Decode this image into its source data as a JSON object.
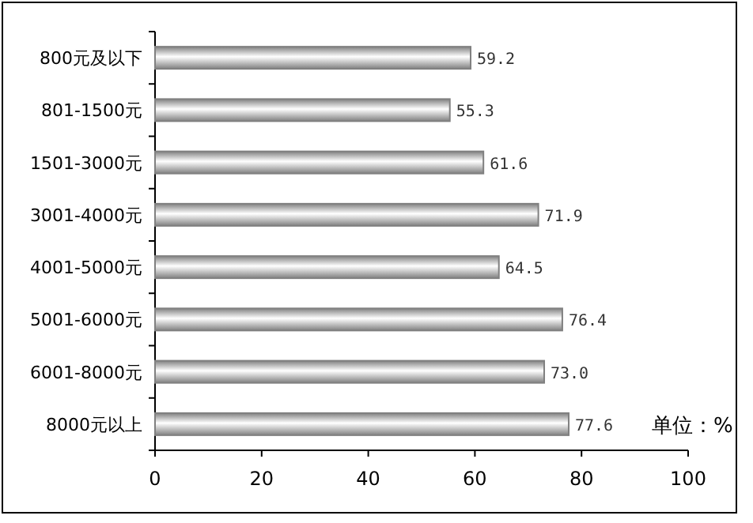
{
  "chart_data": {
    "type": "bar",
    "orientation": "horizontal",
    "categories": [
      "800元及以下",
      "801-1500元",
      "1501-3000元",
      "3001-4000元",
      "4001-5000元",
      "5001-6000元",
      "6001-8000元",
      "8000元以上"
    ],
    "values": [
      59.2,
      55.3,
      61.6,
      71.9,
      64.5,
      76.4,
      73.0,
      77.6
    ],
    "value_labels": [
      "59.2",
      "55.3",
      "61.6",
      "71.9",
      "64.5",
      "76.4",
      "73.0",
      "77.6"
    ],
    "color": "#808080",
    "xlim": [
      0,
      100
    ],
    "xticks": [
      0,
      20,
      40,
      60,
      80,
      100
    ],
    "annotations": [
      "单位：%"
    ]
  }
}
